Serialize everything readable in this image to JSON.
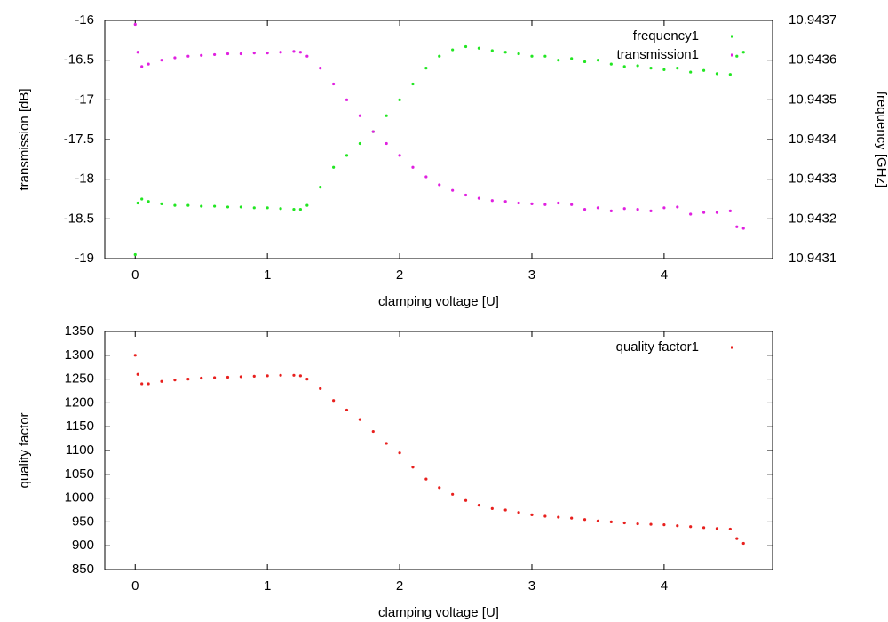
{
  "chart_data": [
    {
      "type": "scatter",
      "xlabel": "clamping voltage [U]",
      "ylabel": "transmission [dB]",
      "y2label": "frequency [GHz]",
      "x": [
        0,
        0.02,
        0.05,
        0.1,
        0.2,
        0.3,
        0.4,
        0.5,
        0.6,
        0.7,
        0.8,
        0.9,
        1.0,
        1.1,
        1.2,
        1.25,
        1.3,
        1.4,
        1.5,
        1.6,
        1.7,
        1.8,
        1.9,
        2.0,
        2.1,
        2.2,
        2.3,
        2.4,
        2.5,
        2.6,
        2.7,
        2.8,
        2.9,
        3.0,
        3.1,
        3.2,
        3.3,
        3.4,
        3.5,
        3.6,
        3.7,
        3.8,
        3.9,
        4.0,
        4.1,
        4.2,
        4.3,
        4.4,
        4.5,
        4.55,
        4.6
      ],
      "series": [
        {
          "name": "frequency1",
          "color": "#22e622",
          "axis": "y2",
          "values": [
            10.94311,
            10.94324,
            10.94325,
            10.943244,
            10.943238,
            10.943234,
            10.943234,
            10.943232,
            10.943232,
            10.94323,
            10.94323,
            10.943228,
            10.943228,
            10.943226,
            10.943224,
            10.943224,
            10.943234,
            10.94328,
            10.94333,
            10.94336,
            10.94339,
            10.94342,
            10.94346,
            10.9435,
            10.94354,
            10.94358,
            10.94361,
            10.943626,
            10.943634,
            10.94363,
            10.943624,
            10.94362,
            10.943616,
            10.94361,
            10.94361,
            10.9436,
            10.943604,
            10.943596,
            10.9436,
            10.94359,
            10.943584,
            10.943586,
            10.94358,
            10.943576,
            10.94358,
            10.94357,
            10.943574,
            10.943566,
            10.943564,
            10.94361,
            10.94362
          ]
        },
        {
          "name": "transmission1",
          "color": "#e020e0",
          "values": [
            -16.05,
            -16.4,
            -16.58,
            -16.55,
            -16.5,
            -16.47,
            -16.45,
            -16.44,
            -16.43,
            -16.42,
            -16.42,
            -16.41,
            -16.41,
            -16.4,
            -16.39,
            -16.4,
            -16.45,
            -16.6,
            -16.8,
            -17.0,
            -17.2,
            -17.4,
            -17.55,
            -17.7,
            -17.85,
            -17.97,
            -18.07,
            -18.14,
            -18.2,
            -18.24,
            -18.27,
            -18.28,
            -18.3,
            -18.31,
            -18.32,
            -18.3,
            -18.32,
            -18.38,
            -18.36,
            -18.4,
            -18.37,
            -18.38,
            -18.4,
            -18.36,
            -18.35,
            -18.44,
            -18.42,
            -18.42,
            -18.4,
            -18.6,
            -18.62
          ]
        }
      ],
      "xlim": [
        -0.23,
        4.82
      ],
      "xticks": [
        0,
        1,
        2,
        3,
        4
      ],
      "ylim": [
        -19,
        -16
      ],
      "yticks": [
        -19,
        -18.5,
        -18,
        -17.5,
        -17,
        -16.5,
        -16
      ],
      "y2lim": [
        10.9431,
        10.9437
      ],
      "y2ticks": [
        10.9431,
        10.9432,
        10.9433,
        10.9434,
        10.9435,
        10.9436,
        10.9437
      ],
      "legend": "top-right"
    },
    {
      "type": "scatter",
      "xlabel": "clamping voltage [U]",
      "ylabel": "quality factor",
      "x": [
        0,
        0.02,
        0.05,
        0.1,
        0.2,
        0.3,
        0.4,
        0.5,
        0.6,
        0.7,
        0.8,
        0.9,
        1.0,
        1.1,
        1.2,
        1.25,
        1.3,
        1.4,
        1.5,
        1.6,
        1.7,
        1.8,
        1.9,
        2.0,
        2.1,
        2.2,
        2.3,
        2.4,
        2.5,
        2.6,
        2.7,
        2.8,
        2.9,
        3.0,
        3.1,
        3.2,
        3.3,
        3.4,
        3.5,
        3.6,
        3.7,
        3.8,
        3.9,
        4.0,
        4.1,
        4.2,
        4.3,
        4.4,
        4.5,
        4.55,
        4.6
      ],
      "series": [
        {
          "name": "quality factor1",
          "color": "#e8201e",
          "values": [
            1300,
            1260,
            1240,
            1240,
            1245,
            1248,
            1250,
            1252,
            1253,
            1254,
            1255,
            1256,
            1257,
            1258,
            1258,
            1257,
            1250,
            1230,
            1205,
            1185,
            1165,
            1140,
            1115,
            1095,
            1065,
            1040,
            1022,
            1008,
            995,
            985,
            978,
            975,
            970,
            965,
            962,
            960,
            958,
            955,
            952,
            950,
            948,
            946,
            945,
            944,
            942,
            940,
            938,
            936,
            935,
            915,
            905
          ]
        }
      ],
      "xlim": [
        -0.23,
        4.82
      ],
      "xticks": [
        0,
        1,
        2,
        3,
        4
      ],
      "ylim": [
        850,
        1350
      ],
      "yticks": [
        850,
        900,
        950,
        1000,
        1050,
        1100,
        1150,
        1200,
        1250,
        1300,
        1350
      ],
      "legend": "top-right"
    }
  ]
}
